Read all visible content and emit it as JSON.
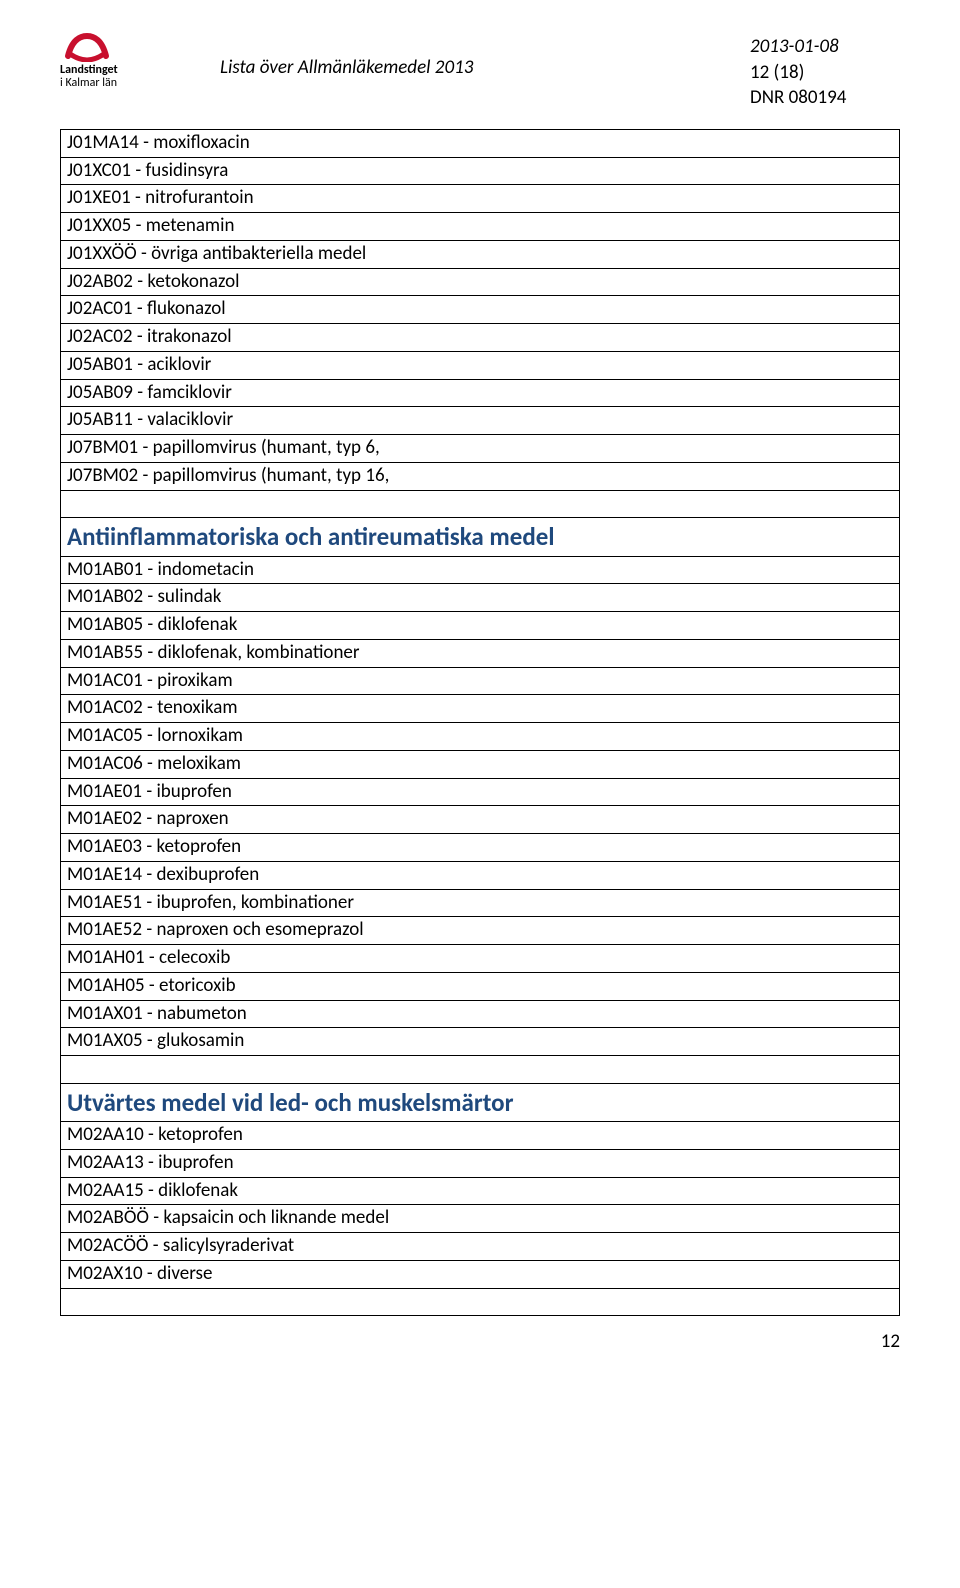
{
  "header": {
    "logo_brand": "Landstinget",
    "logo_sub": "i Kalmar län",
    "doc_title": "Lista över Allmänläkemedel 2013",
    "date": "2013-01-08",
    "page_label": "12 (18)",
    "dnr": "DNR 080194",
    "logo_red": "#c8102e"
  },
  "rows": [
    {
      "t": "item",
      "text": "J01MA14 - moxifloxacin"
    },
    {
      "t": "item",
      "text": "J01XC01 - fusidinsyra"
    },
    {
      "t": "item",
      "text": "J01XE01 - nitrofurantoin"
    },
    {
      "t": "item",
      "text": "J01XX05 - metenamin"
    },
    {
      "t": "item",
      "text": "J01XXÖÖ - övriga antibakteriella medel"
    },
    {
      "t": "item",
      "text": "J02AB02 - ketokonazol"
    },
    {
      "t": "item",
      "text": "J02AC01 - flukonazol"
    },
    {
      "t": "item",
      "text": "J02AC02 - itrakonazol"
    },
    {
      "t": "item",
      "text": "J05AB01 - aciklovir"
    },
    {
      "t": "item",
      "text": "J05AB09 - famciklovir"
    },
    {
      "t": "item",
      "text": "J05AB11 - valaciklovir"
    },
    {
      "t": "item",
      "text": "J07BM01 - papillomvirus (humant, typ 6,"
    },
    {
      "t": "item",
      "text": "J07BM02 - papillomvirus (humant, typ 16,"
    },
    {
      "t": "spacer"
    },
    {
      "t": "section",
      "text": "Antiinflammatoriska och antireumatiska medel"
    },
    {
      "t": "item",
      "text": "M01AB01 - indometacin"
    },
    {
      "t": "item",
      "text": "M01AB02 - sulindak"
    },
    {
      "t": "item",
      "text": "M01AB05 - diklofenak"
    },
    {
      "t": "item",
      "text": "M01AB55 - diklofenak, kombinationer"
    },
    {
      "t": "item",
      "text": "M01AC01 - piroxikam"
    },
    {
      "t": "item",
      "text": "M01AC02 - tenoxikam"
    },
    {
      "t": "item",
      "text": "M01AC05 - lornoxikam"
    },
    {
      "t": "item",
      "text": "M01AC06 - meloxikam"
    },
    {
      "t": "item",
      "text": "M01AE01 - ibuprofen"
    },
    {
      "t": "item",
      "text": "M01AE02 - naproxen"
    },
    {
      "t": "item",
      "text": "M01AE03 - ketoprofen"
    },
    {
      "t": "item",
      "text": "M01AE14 - dexibuprofen"
    },
    {
      "t": "item",
      "text": "M01AE51 - ibuprofen, kombinationer"
    },
    {
      "t": "item",
      "text": "M01AE52 - naproxen och esomeprazol"
    },
    {
      "t": "item",
      "text": "M01AH01 - celecoxib"
    },
    {
      "t": "item",
      "text": "M01AH05 - etoricoxib"
    },
    {
      "t": "item",
      "text": "M01AX01 - nabumeton"
    },
    {
      "t": "item",
      "text": "M01AX05 - glukosamin"
    },
    {
      "t": "spacer"
    },
    {
      "t": "section",
      "text": "Utvärtes medel vid led- och muskelsmärtor"
    },
    {
      "t": "item",
      "text": "M02AA10 - ketoprofen"
    },
    {
      "t": "item",
      "text": "M02AA13 - ibuprofen"
    },
    {
      "t": "item",
      "text": "M02AA15 - diklofenak"
    },
    {
      "t": "item",
      "text": "M02ABÖÖ - kapsaicin och liknande medel"
    },
    {
      "t": "item",
      "text": "M02ACÖÖ - salicylsyraderivat"
    },
    {
      "t": "item",
      "text": "M02AX10 - diverse"
    },
    {
      "t": "spacer"
    }
  ],
  "footer": {
    "page_num": "12"
  }
}
